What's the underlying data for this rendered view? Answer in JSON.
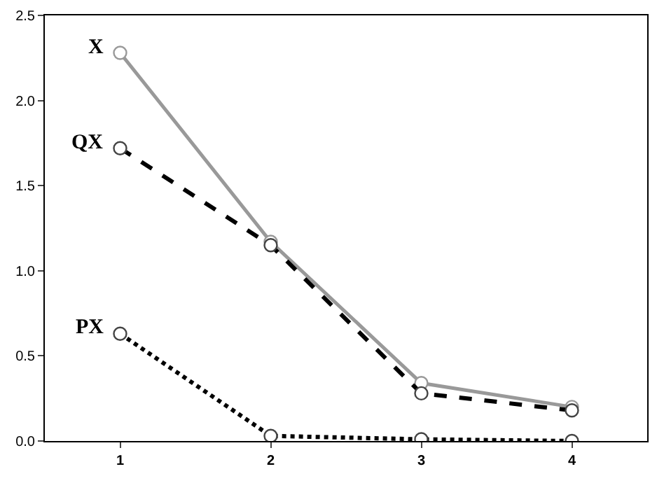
{
  "chart_data": {
    "type": "line",
    "x": [
      1,
      2,
      3,
      4
    ],
    "xlim": [
      0.5,
      4.5
    ],
    "xticks": [
      1,
      2,
      3,
      4
    ],
    "ylim": [
      0,
      2.5
    ],
    "yticks": [
      {
        "value": 0,
        "label": "0.0"
      },
      {
        "value": 0.5,
        "label": "0.5"
      },
      {
        "value": 1,
        "label": "1.0"
      },
      {
        "value": 1.5,
        "label": "1.5"
      },
      {
        "value": 2,
        "label": "2.0"
      },
      {
        "value": 2.5,
        "label": "2.5"
      }
    ],
    "legend": false,
    "marker": "circle",
    "series": [
      {
        "name": "X",
        "color": "#999999",
        "line_style": "solid",
        "values": [
          2.28,
          1.17,
          0.34,
          0.2
        ]
      },
      {
        "name": "QX",
        "color": "#000000",
        "line_style": "dashed",
        "values": [
          1.72,
          1.15,
          0.28,
          0.18
        ]
      },
      {
        "name": "PX",
        "color": "#000000",
        "line_style": "dotted",
        "values": [
          0.63,
          0.03,
          0.01,
          0.0
        ]
      }
    ]
  }
}
